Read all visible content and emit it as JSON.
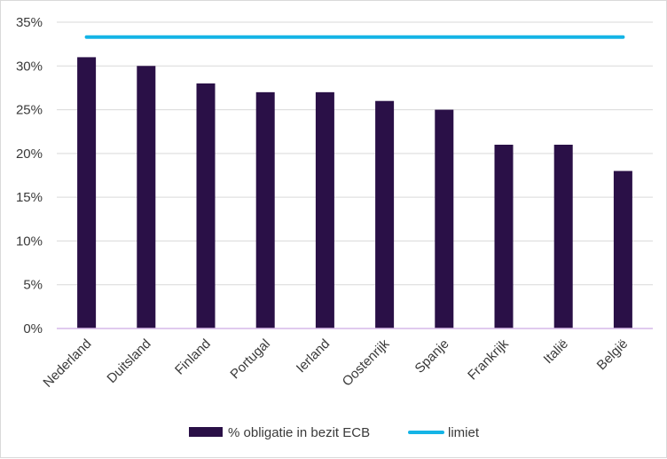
{
  "chart_data": {
    "type": "bar",
    "categories": [
      "Nederland",
      "Duitsland",
      "Finland",
      "Portugal",
      "Ierland",
      "Oostenrijk",
      "Spanje",
      "Frankrijk",
      "Italië",
      "België"
    ],
    "series": [
      {
        "name": "% obligatie in bezit ECB",
        "type": "bar",
        "color": "#2a1047",
        "values": [
          31,
          30,
          28,
          27,
          27,
          26,
          25,
          21,
          21,
          18
        ]
      },
      {
        "name": "limiet",
        "type": "line",
        "color": "#14b4e6",
        "values": [
          33.3,
          33.3,
          33.3,
          33.3,
          33.3,
          33.3,
          33.3,
          33.3,
          33.3,
          33.3
        ]
      }
    ],
    "y_ticks": [
      "0%",
      "5%",
      "10%",
      "15%",
      "20%",
      "25%",
      "30%",
      "35%"
    ],
    "ylim": [
      0,
      35
    ],
    "unit": "%",
    "grid": true,
    "legend_position": "bottom"
  }
}
